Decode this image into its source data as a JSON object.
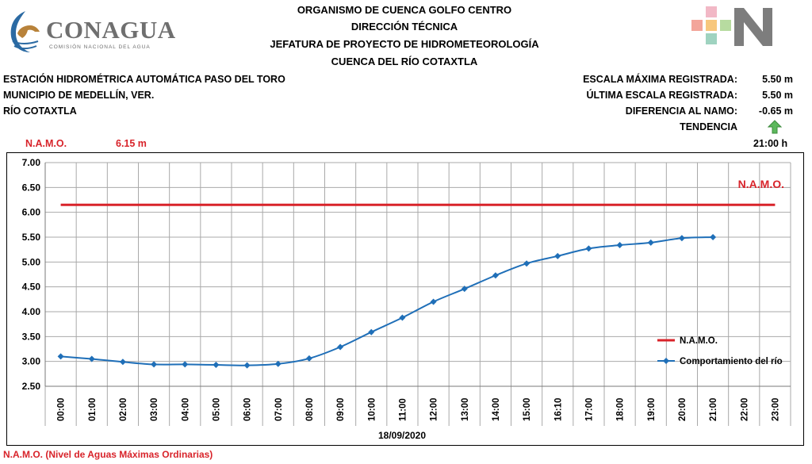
{
  "header": {
    "logo_text": "CONAGUA",
    "logo_sub": "COMISIÓN NACIONAL DEL AGUA",
    "lines": [
      "ORGANISMO DE CUENCA GOLFO CENTRO",
      "DIRECCIÓN TÉCNICA",
      "JEFATURA DE PROYECTO DE HIDROMETEOROLOGÍA",
      "CUENCA DEL RÍO COTAXTLA"
    ]
  },
  "station": {
    "name": "ESTACIÓN HIDROMÉTRICA AUTOMÁTICA PASO DEL TORO",
    "municipality": "MUNICIPIO DE MEDELLÍN, VER.",
    "river": "RÍO COTAXTLA"
  },
  "summary": {
    "max_label": "ESCALA MÁXIMA REGISTRADA:",
    "max_value": "5.50 m",
    "last_label": "ÚLTIMA ESCALA REGISTRADA:",
    "last_value": "5.50 m",
    "diff_label": "DIFERENCIA AL NAMO:",
    "diff_value": "-0.65 m",
    "trend_label": "TENDENCIA",
    "trend_icon": "arrow-up-icon",
    "trend_color": "#5cb85c",
    "time": "21:00 h"
  },
  "namo": {
    "label": "N.A.M.O.",
    "value_text": "6.15 m"
  },
  "footnote": "N.A.M.O. (Nivel de Aguas Máximas Ordinarias)",
  "chart_data": {
    "type": "line",
    "xlabel": "18/09/2020",
    "ylim": [
      2.5,
      7.0
    ],
    "y_ticks": [
      "2.50",
      "3.00",
      "3.50",
      "4.00",
      "4.50",
      "5.00",
      "5.50",
      "6.00",
      "6.50",
      "7.00"
    ],
    "categories": [
      "00:00",
      "01:00",
      "02:00",
      "03:00",
      "04:00",
      "05:00",
      "06:00",
      "07:00",
      "08:00",
      "09:00",
      "10:00",
      "11:00",
      "12:00",
      "13:00",
      "14:00",
      "15:00",
      "16:10",
      "17:00",
      "18:00",
      "19:00",
      "20:00",
      "21:00",
      "22:00",
      "23:00"
    ],
    "namo_annotation": "N.A.M.O.",
    "grid": true,
    "legend_position": "right",
    "series": [
      {
        "name": "N.A.M.O.",
        "color": "#d8232a",
        "values": [
          6.15,
          6.15,
          6.15,
          6.15,
          6.15,
          6.15,
          6.15,
          6.15,
          6.15,
          6.15,
          6.15,
          6.15,
          6.15,
          6.15,
          6.15,
          6.15,
          6.15,
          6.15,
          6.15,
          6.15,
          6.15,
          6.15,
          6.15,
          6.15
        ]
      },
      {
        "name": "Comportamiento del río",
        "color": "#1f6fb8",
        "values": [
          3.1,
          3.05,
          2.99,
          2.94,
          2.94,
          2.93,
          2.92,
          2.95,
          3.06,
          3.29,
          3.59,
          3.88,
          4.2,
          4.46,
          4.73,
          4.97,
          5.12,
          5.27,
          5.34,
          5.39,
          5.48,
          5.5,
          null,
          null
        ]
      }
    ]
  }
}
